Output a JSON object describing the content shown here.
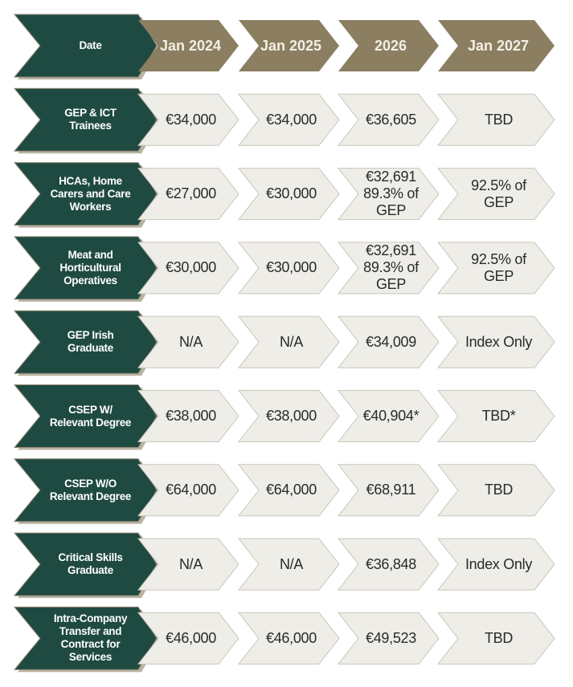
{
  "colors": {
    "row_header": "#1f4a42",
    "date_header": "#8b7e61",
    "cell": "#eeede8",
    "cell_border": "#c9c6ba"
  },
  "header": {
    "label": "Date",
    "columns": [
      "Jan 2024",
      "Jan 2025",
      "2026",
      "Jan 2027"
    ]
  },
  "rows": [
    {
      "label": "GEP & ICT\nTrainees",
      "values": [
        "€34,000",
        "€34,000",
        "€36,605",
        "TBD"
      ]
    },
    {
      "label": "HCAs, Home\nCarers and Care\nWorkers",
      "values": [
        "€27,000",
        "€30,000",
        "€32,691\n89.3% of\nGEP",
        "92.5% of\nGEP"
      ]
    },
    {
      "label": "Meat and\nHorticultural\nOperatives",
      "values": [
        "€30,000",
        "€30,000",
        "€32,691\n89.3% of\nGEP",
        "92.5% of\nGEP"
      ]
    },
    {
      "label": "GEP Irish\nGraduate",
      "values": [
        "N/A",
        "N/A",
        "€34,009",
        "Index Only"
      ]
    },
    {
      "label": "CSEP W/\nRelevant Degree",
      "values": [
        "€38,000",
        "€38,000",
        "€40,904*",
        "TBD*"
      ]
    },
    {
      "label": "CSEP W/O\nRelevant Degree",
      "values": [
        "€64,000",
        "€64,000",
        "€68,911",
        "TBD"
      ]
    },
    {
      "label": "Critical Skills\nGraduate",
      "values": [
        "N/A",
        "N/A",
        "€36,848",
        "Index Only"
      ]
    },
    {
      "label": "Intra-Company\nTransfer and\nContract for\nServices",
      "values": [
        "€46,000",
        "€46,000",
        "€49,523",
        "TBD"
      ]
    }
  ]
}
